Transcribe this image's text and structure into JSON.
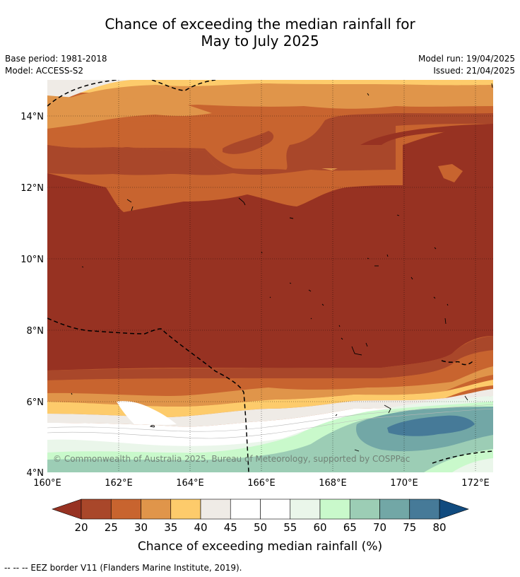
{
  "title_line1": "Chance of exceeding the median rainfall for",
  "title_line2": "May to July 2025",
  "base_period": "Base period: 1981-2018",
  "model": "Model: ACCESS-S2",
  "model_run": "Model run: 19/04/2025",
  "issued": "Issued: 21/04/2025",
  "copyright": "© Commonwealth of Australia 2025, Bureau of Meteorology, supported by COSPPac",
  "map": {
    "lat_labels": [
      "14°N",
      "12°N",
      "10°N",
      "8°N",
      "6°N",
      "4°N"
    ],
    "lon_labels": [
      "160°E",
      "162°E",
      "164°E",
      "166°E",
      "168°E",
      "170°E",
      "172°E"
    ]
  },
  "colorbar": {
    "ticks": [
      "20",
      "25",
      "30",
      "35",
      "40",
      "45",
      "50",
      "55",
      "60",
      "65",
      "70",
      "75",
      "80"
    ],
    "colors": [
      "#a9472a",
      "#c8642f",
      "#e0954a",
      "#fdcb6b",
      "#efebe6",
      "#ffffff",
      "#ffffff",
      "#eaf6ea",
      "#c9f9cb",
      "#9ccdb5",
      "#72a7a6",
      "#467a98"
    ],
    "low_color": "#973222",
    "high_color": "#114b7f",
    "label": "Chance of exceeding median rainfall (%)"
  },
  "footer": "--  --  -- EEZ border V11 (Flanders Marine Institute, 2019)."
}
